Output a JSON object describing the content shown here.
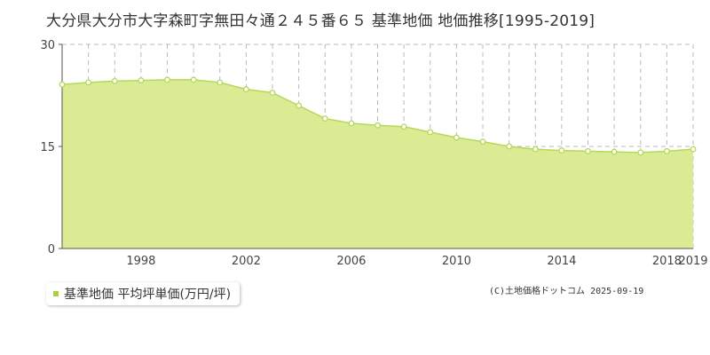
{
  "title": "大分県大分市大字森町字無田々通２４５番６５ 基準地価 地価推移[1995-2019]",
  "legend": {
    "label": "基準地価 平均坪単価(万円/坪)",
    "color": "#a8d13c"
  },
  "copyright": "(C)土地価格ドットコム 2025-09-19",
  "colors": {
    "fill": "#dbeb94",
    "line": "#b5d85a",
    "point_fill": "#ffffff",
    "grid": "#bbbbbb",
    "axis": "#555555"
  },
  "chart_data": {
    "type": "area",
    "title": "大分県大分市大字森町字無田々通２４５番６５ 基準地価 地価推移[1995-2019]",
    "xlabel": "",
    "ylabel": "",
    "x": [
      1995,
      1996,
      1997,
      1998,
      1999,
      2000,
      2001,
      2002,
      2003,
      2004,
      2005,
      2006,
      2007,
      2008,
      2009,
      2010,
      2011,
      2012,
      2013,
      2014,
      2015,
      2016,
      2017,
      2018,
      2019
    ],
    "series": [
      {
        "name": "基準地価 平均坪単価(万円/坪)",
        "values": [
          24.1,
          24.4,
          24.6,
          24.7,
          24.8,
          24.8,
          24.4,
          23.4,
          22.9,
          21.0,
          19.1,
          18.4,
          18.1,
          17.9,
          17.1,
          16.3,
          15.7,
          15.0,
          14.6,
          14.4,
          14.3,
          14.2,
          14.1,
          14.3,
          14.6
        ]
      }
    ],
    "xlim": [
      1995,
      2019
    ],
    "ylim": [
      0,
      30
    ],
    "yticks": [
      0,
      15,
      30
    ],
    "xticks": [
      1998,
      2002,
      2006,
      2010,
      2014,
      2018,
      2019
    ],
    "grid": true,
    "legend_position": "bottom-left"
  }
}
